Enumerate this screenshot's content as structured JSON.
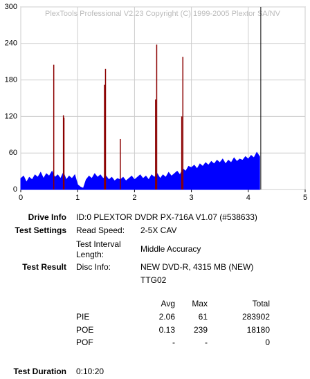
{
  "chart_data": {
    "type": "area",
    "title": "PlexTools Professional V2.23 Copyright (C) 1999-2005 Plextor SA/NV",
    "xlim": [
      0,
      5
    ],
    "xticks": [
      0,
      1,
      2,
      3,
      4,
      5
    ],
    "ylim": [
      0,
      300
    ],
    "yticks": [
      0,
      60,
      120,
      180,
      240,
      300
    ],
    "grid": true,
    "series": [
      {
        "type": "area",
        "color": "#0000ff",
        "x": [
          0,
          0.05,
          0.1,
          0.15,
          0.2,
          0.25,
          0.3,
          0.35,
          0.4,
          0.45,
          0.5,
          0.55,
          0.6,
          0.65,
          0.7,
          0.75,
          0.8,
          0.85,
          0.9,
          0.95,
          1,
          1.05,
          1.1,
          1.15,
          1.2,
          1.25,
          1.3,
          1.35,
          1.4,
          1.45,
          1.5,
          1.55,
          1.6,
          1.65,
          1.7,
          1.75,
          1.8,
          1.85,
          1.9,
          1.95,
          2,
          2.05,
          2.1,
          2.15,
          2.2,
          2.25,
          2.3,
          2.35,
          2.4,
          2.45,
          2.5,
          2.55,
          2.6,
          2.65,
          2.7,
          2.75,
          2.8,
          2.85,
          2.9,
          2.95,
          3,
          3.05,
          3.1,
          3.15,
          3.2,
          3.25,
          3.3,
          3.35,
          3.4,
          3.45,
          3.5,
          3.55,
          3.6,
          3.65,
          3.7,
          3.75,
          3.8,
          3.85,
          3.9,
          3.95,
          4,
          4.05,
          4.1,
          4.15,
          4.2
        ],
        "values": [
          18,
          22,
          12,
          20,
          16,
          24,
          20,
          28,
          18,
          26,
          22,
          30,
          20,
          24,
          18,
          28,
          16,
          22,
          18,
          24,
          8,
          4,
          2,
          16,
          22,
          18,
          26,
          20,
          24,
          18,
          22,
          16,
          20,
          14,
          18,
          16,
          20,
          14,
          18,
          22,
          16,
          20,
          24,
          18,
          22,
          16,
          24,
          20,
          26,
          18,
          24,
          20,
          28,
          22,
          26,
          30,
          24,
          34,
          30,
          38,
          36,
          40,
          34,
          42,
          38,
          44,
          40,
          46,
          42,
          48,
          44,
          50,
          42,
          48,
          44,
          52,
          46,
          50,
          48,
          54,
          50,
          56,
          52,
          61,
          54
        ]
      },
      {
        "type": "spike",
        "color": "#8b0000",
        "x": [
          0.58,
          0.75,
          0.76,
          1.47,
          1.49,
          1.75,
          2.37,
          2.39,
          2.83,
          2.85
        ],
        "values": [
          205,
          122,
          118,
          172,
          198,
          83,
          148,
          238,
          120,
          218
        ]
      }
    ],
    "end_line": {
      "x": 4.22,
      "color": "#000000"
    }
  },
  "report": {
    "drive_info": {
      "label": "Drive Info",
      "value": "ID:0 PLEXTOR DVDR PX-716A V1.07 (#538633)"
    },
    "test_settings": {
      "label": "Test Settings",
      "rows": [
        [
          "Read Speed:",
          "2-5X CAV"
        ],
        [
          "Test Interval Length:",
          "Middle Accuracy"
        ]
      ]
    },
    "test_result": {
      "label": "Test Result",
      "key": "Disc Info:",
      "lines": [
        "NEW DVD-R, 4315 MB (NEW)",
        "TTG02"
      ]
    },
    "stats": {
      "header": [
        "Avg",
        "Max",
        "Total"
      ],
      "rows": [
        [
          "PIE",
          2.06,
          61,
          283902
        ],
        [
          "POE",
          0.13,
          239,
          18180
        ],
        [
          "POF",
          "-",
          "-",
          0
        ]
      ]
    },
    "test_duration": {
      "label": "Test Duration",
      "value": "0:10:20"
    }
  }
}
